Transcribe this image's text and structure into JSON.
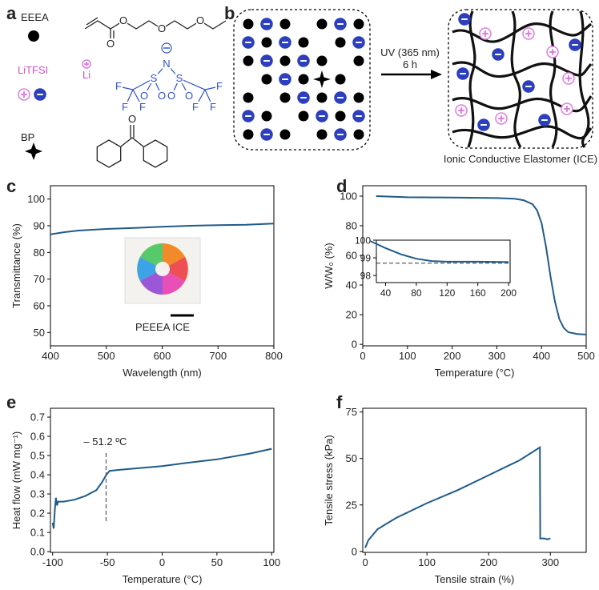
{
  "panel_labels": [
    "a",
    "b",
    "c",
    "d",
    "e",
    "f"
  ],
  "schematic": {
    "eeea_label": "EEEA",
    "eeea_atoms": [
      "O",
      "O",
      "O",
      "O"
    ],
    "litfsi_label": "LiTFSI",
    "li_label": "Li",
    "tfsi_atoms": [
      "F",
      "F",
      "F",
      "S",
      "O",
      "O",
      "N",
      "S",
      "O",
      "O",
      "F",
      "F",
      "F"
    ],
    "bp_label": "BP",
    "bp_atoms": [
      "O"
    ],
    "arrow_top": "UV (365 nm)",
    "arrow_bottom": "6 h",
    "product_label": "Ionic Conductive Elastomer (ICE)"
  },
  "chart_data": [
    {
      "type": "line",
      "xlabel": "Wavelength (nm)",
      "ylabel": "Transmittance (%)",
      "color": "#1f5b8a",
      "x": [
        400,
        425,
        450,
        500,
        550,
        600,
        650,
        700,
        750,
        800
      ],
      "values": [
        86.8,
        87.6,
        88.2,
        88.8,
        89.2,
        89.6,
        90.0,
        90.2,
        90.4,
        90.8
      ],
      "xlim": [
        400,
        800
      ],
      "ylim": [
        45,
        105
      ],
      "xticks": [
        400,
        500,
        600,
        700,
        800
      ],
      "yticks": [
        50,
        60,
        70,
        80,
        90,
        100
      ],
      "inset_label": "PEEEA ICE"
    },
    {
      "type": "line",
      "xlabel": "Temperature (°C)",
      "ylabel": "W/W₀ (%)",
      "color": "#1f5b8a",
      "x": [
        30,
        100,
        200,
        300,
        340,
        360,
        380,
        390,
        400,
        410,
        420,
        430,
        440,
        450,
        460,
        480,
        500
      ],
      "values": [
        100,
        99.2,
        99,
        98.7,
        98.2,
        97.2,
        94.5,
        90.5,
        82,
        66,
        46,
        29,
        17,
        11,
        8.2,
        7,
        6.6
      ],
      "xlim": [
        0,
        500
      ],
      "ylim": [
        -1,
        107
      ],
      "xticks": [
        0,
        100,
        200,
        300,
        400,
        500
      ],
      "yticks": [
        0,
        20,
        40,
        60,
        80,
        100
      ],
      "inset": {
        "type": "line",
        "color": "#1f5b8a",
        "x": [
          20,
          30,
          40,
          60,
          80,
          100,
          120,
          160,
          200
        ],
        "values": [
          99.95,
          99.75,
          99.55,
          99.2,
          98.95,
          98.82,
          98.78,
          98.78,
          98.76
        ],
        "xlim": [
          28,
          202
        ],
        "ylim": [
          97.6,
          100
        ],
        "xticks": [
          40,
          80,
          120,
          160,
          200
        ],
        "yticks": [
          98,
          99,
          100
        ],
        "hline": 98.7
      }
    },
    {
      "type": "line",
      "xlabel": "Temperature (°C)",
      "ylabel": "Heat flow (mW mg⁻¹)",
      "color": "#1f5b8a",
      "x": [
        -100,
        -99,
        -98,
        -97,
        -96,
        -95,
        -90,
        -80,
        -70,
        -60,
        -55,
        -51,
        -48,
        -40,
        -20,
        0,
        20,
        50,
        80,
        100
      ],
      "values": [
        0.15,
        0.12,
        0.22,
        0.28,
        0.24,
        0.26,
        0.26,
        0.27,
        0.29,
        0.32,
        0.36,
        0.4,
        0.42,
        0.425,
        0.435,
        0.445,
        0.46,
        0.48,
        0.51,
        0.535
      ],
      "xlim": [
        -102,
        102
      ],
      "ylim": [
        -0.004,
        0.746
      ],
      "xticks": [
        -100,
        -50,
        0,
        50,
        100
      ],
      "yticks": [
        {
          "value": 0,
          "label": "0.0"
        },
        {
          "value": 0.1,
          "label": "0.1"
        },
        {
          "value": 0.2,
          "label": "0.2"
        },
        {
          "value": 0.3,
          "label": "0.3"
        },
        {
          "value": 0.4,
          "label": "0.4"
        },
        {
          "value": 0.5,
          "label": "0.5"
        },
        {
          "value": 0.6,
          "label": "0.6"
        },
        {
          "value": 0.7,
          "label": "0.7"
        }
      ],
      "annotation": {
        "text": "– 51.2 ºC",
        "x": -51.2
      }
    },
    {
      "type": "line",
      "xlabel": "Tensile strain (%)",
      "ylabel": "Tensile stress (kPa)",
      "color": "#1f5b8a",
      "x": [
        0,
        5,
        20,
        50,
        100,
        150,
        200,
        250,
        283,
        283.5,
        290,
        295,
        300
      ],
      "values": [
        2,
        6,
        12,
        18,
        26,
        33,
        41,
        49,
        56,
        7,
        7,
        6.5,
        7
      ],
      "xlim": [
        -4,
        358
      ],
      "ylim": [
        -0.5,
        77
      ],
      "xticks": [
        0,
        100,
        200,
        300
      ],
      "yticks": [
        0,
        25,
        50,
        75
      ]
    }
  ]
}
